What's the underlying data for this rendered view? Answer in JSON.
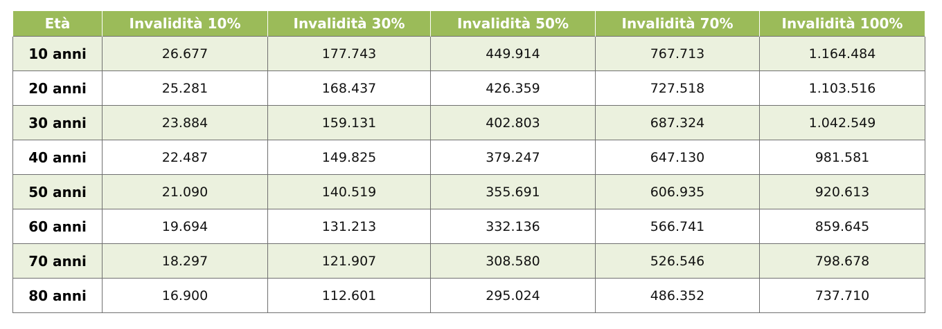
{
  "table": {
    "headers": [
      "Età",
      "Invalidità 10%",
      "Invalidità 30%",
      "Invalidità 50%",
      "Invalidità 70%",
      "Invalidità 100%"
    ],
    "rows": [
      [
        "10 anni",
        "26.677",
        "177.743",
        "449.914",
        "767.713",
        "1.164.484"
      ],
      [
        "20 anni",
        "25.281",
        "168.437",
        "426.359",
        "727.518",
        "1.103.516"
      ],
      [
        "30 anni",
        "23.884",
        "159.131",
        "402.803",
        "687.324",
        "1.042.549"
      ],
      [
        "40 anni",
        "22.487",
        "149.825",
        "379.247",
        "647.130",
        "981.581"
      ],
      [
        "50 anni",
        "21.090",
        "140.519",
        "355.691",
        "606.935",
        "920.613"
      ],
      [
        "60 anni",
        "19.694",
        "131.213",
        "332.136",
        "566.741",
        "859.645"
      ],
      [
        "70 anni",
        "18.297",
        "121.907",
        "308.580",
        "526.546",
        "798.678"
      ],
      [
        "80 anni",
        "16.900",
        "112.601",
        "295.024",
        "486.352",
        "737.710"
      ]
    ]
  },
  "colors": {
    "header_bg": "#9bbb59",
    "header_text": "#ffffff",
    "row_shade": "#ebf1de",
    "row_plain": "#ffffff",
    "border": "#6f6f6f"
  }
}
